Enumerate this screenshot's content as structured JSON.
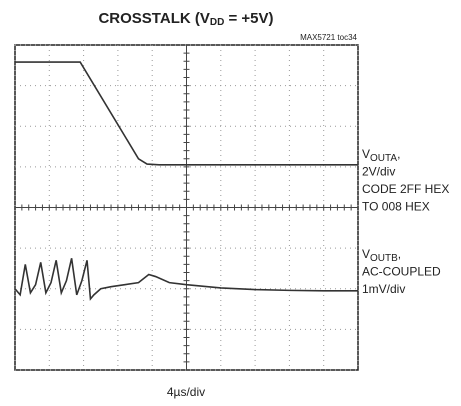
{
  "chart_data": {
    "type": "line",
    "title": [
      "CROSSTALK (V",
      "DD",
      " = +5V)"
    ],
    "note": "MAX5721 toc34",
    "x_label": "4µs/div",
    "annotations": [
      {
        "lines": [
          [
            "V",
            "OUTA",
            ","
          ],
          [
            "2V/div"
          ],
          [
            "CODE 2FF HEX"
          ],
          [
            "TO 008 HEX"
          ]
        ]
      },
      {
        "lines": [
          [
            "V",
            "OUTB",
            ","
          ],
          [
            "AC-COUPLED"
          ],
          [
            "1mV/div"
          ]
        ]
      }
    ],
    "xlim": [
      0,
      10
    ],
    "ylim": [
      0,
      8
    ],
    "xticks": [
      0,
      1,
      2,
      3,
      4,
      5,
      6,
      7,
      8,
      9,
      10
    ],
    "yticks": [
      0,
      1,
      2,
      3,
      4,
      5,
      6,
      7,
      8
    ],
    "grid": true,
    "series": [
      {
        "color": "#333333",
        "x": [
          0,
          1.9,
          3.6,
          3.85,
          4.2,
          10
        ],
        "values": [
          7.58,
          7.58,
          5.2,
          5.07,
          5.05,
          5.05
        ]
      },
      {
        "color": "#333333",
        "x": [
          0,
          0.15,
          0.3,
          0.45,
          0.6,
          0.75,
          0.9,
          1.05,
          1.2,
          1.35,
          1.5,
          1.65,
          1.8,
          1.95,
          2.1,
          2.2,
          2.3,
          2.5,
          2.8,
          3.2,
          3.6,
          3.9,
          4.1,
          4.5,
          5,
          6,
          7,
          8,
          9,
          10
        ],
        "values": [
          2.0,
          1.85,
          2.6,
          1.9,
          2.1,
          2.65,
          1.9,
          2.15,
          2.7,
          1.9,
          2.2,
          2.75,
          1.85,
          2.2,
          2.7,
          1.75,
          1.85,
          2.0,
          2.05,
          2.1,
          2.15,
          2.35,
          2.3,
          2.15,
          2.1,
          2.02,
          1.98,
          1.96,
          1.95,
          1.95
        ]
      }
    ]
  }
}
